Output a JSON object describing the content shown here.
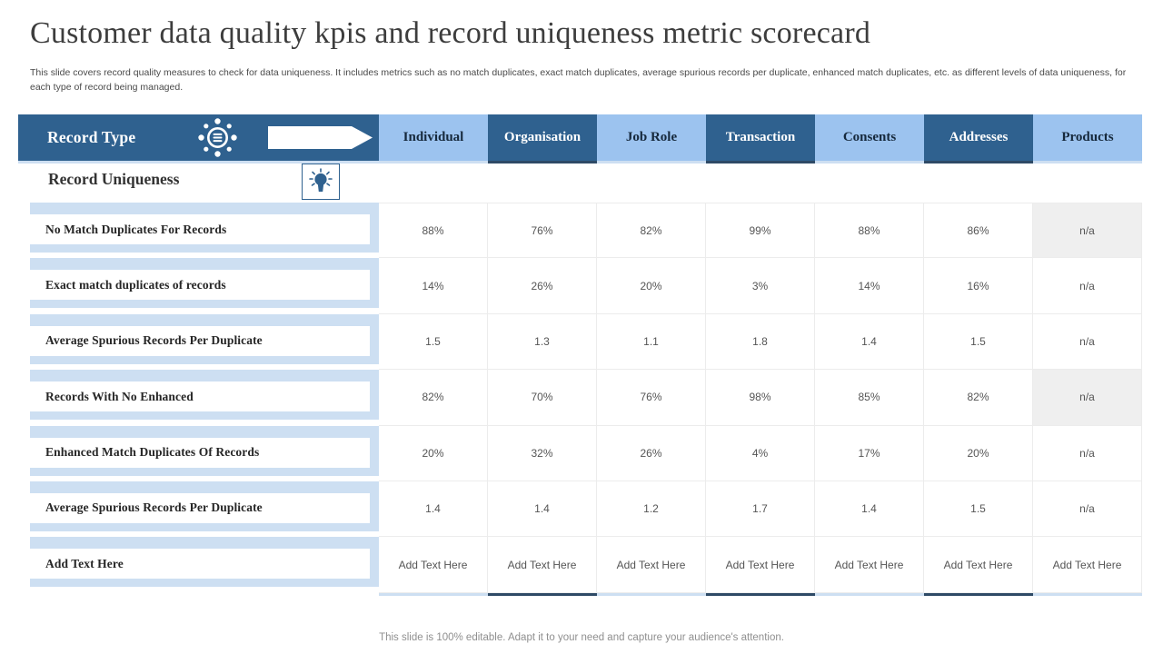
{
  "slide": {
    "title": "Customer data quality kpis and record uniqueness metric scorecard",
    "subtitle": "This slide covers record quality measures to check for data uniqueness. It includes metrics such as no match duplicates, exact match duplicates, average spurious records per duplicate, enhanced match duplicates, etc. as different levels of data uniqueness, for each type of record being managed.",
    "footer": "This slide is 100% editable. Adapt it to your need and capture your audience's attention."
  },
  "colors": {
    "dark_blue": "#2f618f",
    "light_blue": "#9cc3ef",
    "band_blue": "#cddff2",
    "na_gray": "#efefef",
    "dark_underline": "#2e4a66"
  },
  "icons": {
    "hub_icon": "data-hub-with-dots",
    "arrow_icon": "white-block-arrow-right",
    "bulb_icon": "lightbulb-with-rays"
  },
  "table": {
    "corner_label": "Record Type",
    "section_label": "Record Uniqueness",
    "columns": [
      {
        "label": "Individual",
        "tone": "light"
      },
      {
        "label": "Organisation",
        "tone": "dark"
      },
      {
        "label": "Job Role",
        "tone": "light"
      },
      {
        "label": "Transaction",
        "tone": "dark"
      },
      {
        "label": "Consents",
        "tone": "light"
      },
      {
        "label": "Addresses",
        "tone": "dark"
      },
      {
        "label": "Products",
        "tone": "light"
      }
    ],
    "rows": [
      {
        "label": "No Match Duplicates For Records",
        "values": [
          "88%",
          "76%",
          "82%",
          "99%",
          "88%",
          "86%",
          "n/a"
        ],
        "na_shaded": true,
        "placeholder": false
      },
      {
        "label": "Exact match duplicates of records",
        "values": [
          "14%",
          "26%",
          "20%",
          "3%",
          "14%",
          "16%",
          "n/a"
        ],
        "na_shaded": false,
        "placeholder": false
      },
      {
        "label": "Average Spurious Records Per Duplicate",
        "values": [
          "1.5",
          "1.3",
          "1.1",
          "1.8",
          "1.4",
          "1.5",
          "n/a"
        ],
        "na_shaded": false,
        "placeholder": false
      },
      {
        "label": "Records With No Enhanced",
        "values": [
          "82%",
          "70%",
          "76%",
          "98%",
          "85%",
          "82%",
          "n/a"
        ],
        "na_shaded": true,
        "placeholder": false
      },
      {
        "label": "Enhanced Match Duplicates Of Records",
        "values": [
          "20%",
          "32%",
          "26%",
          "4%",
          "17%",
          "20%",
          "n/a"
        ],
        "na_shaded": false,
        "placeholder": false
      },
      {
        "label": "Average Spurious Records Per Duplicate",
        "values": [
          "1.4",
          "1.4",
          "1.2",
          "1.7",
          "1.4",
          "1.5",
          "n/a"
        ],
        "na_shaded": false,
        "placeholder": false
      },
      {
        "label": "Add Text Here",
        "values": [
          "Add Text Here",
          "Add Text Here",
          "Add Text Here",
          "Add Text Here",
          "Add Text Here",
          "Add Text Here",
          "Add Text Here"
        ],
        "na_shaded": false,
        "placeholder": true
      }
    ]
  }
}
